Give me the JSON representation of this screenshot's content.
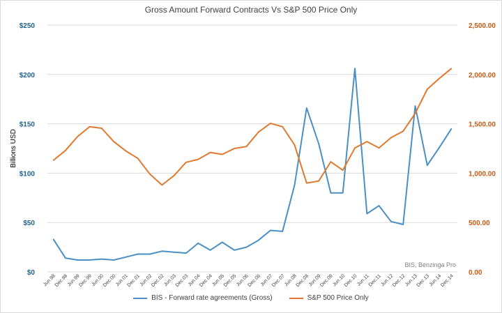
{
  "chart_data": {
    "type": "line",
    "title": "Gross Amount Forward Contracts Vs S&P 500 Price Only",
    "ylabel_left": "Billions USD",
    "ylim_left": [
      0,
      250
    ],
    "ylim_right": [
      0,
      2500
    ],
    "left_ticks": [
      "$0",
      "$50",
      "$100",
      "$150",
      "$200",
      "$250"
    ],
    "right_ticks": [
      "0.00",
      "500.00",
      "1,000.00",
      "1,500.00",
      "2,000.00",
      "2,500.00"
    ],
    "x": [
      "Jun.98",
      "Dec.98",
      "Jun.99",
      "Dec.99",
      "Jun.00",
      "Dec.00",
      "Jun.01",
      "Dec.01",
      "Jun.02",
      "Dec.02",
      "Jun.03",
      "Dec.03",
      "Jun.04",
      "Dec.04",
      "Jun.05",
      "Dec.05",
      "Jun.06",
      "Dec.06",
      "Jun.07",
      "Dec.07",
      "Jun.08",
      "Dec.08",
      "Jun.09",
      "Dec.09",
      "Jun.10",
      "Dec.10",
      "Jun.11",
      "Dec.11",
      "Jun.12",
      "Dec.12",
      "Jun.13",
      "Dec.13",
      "Jun.14",
      "Dec.14"
    ],
    "series": [
      {
        "name": "BIS - Forward rate agreements (Gross)",
        "axis": "left",
        "color": "#4a8fc4",
        "values": [
          33,
          14,
          12,
          12,
          13,
          12,
          15,
          18,
          18,
          21,
          20,
          19,
          29,
          22,
          30,
          22,
          25,
          32,
          42,
          41,
          88,
          166,
          130,
          80,
          80,
          206,
          59,
          67,
          51,
          48,
          168,
          108,
          126,
          145
        ]
      },
      {
        "name": "S&P 500 Price Only",
        "axis": "right",
        "color": "#e0782d",
        "values": [
          1130,
          1230,
          1370,
          1470,
          1455,
          1320,
          1225,
          1150,
          990,
          880,
          975,
          1110,
          1140,
          1210,
          1190,
          1250,
          1270,
          1415,
          1505,
          1470,
          1285,
          900,
          920,
          1115,
          1030,
          1255,
          1320,
          1255,
          1360,
          1425,
          1605,
          1850,
          1960,
          2060
        ]
      }
    ],
    "source_note": "BIS, Benzinga Pro",
    "grid": true,
    "legend": "bottom"
  }
}
